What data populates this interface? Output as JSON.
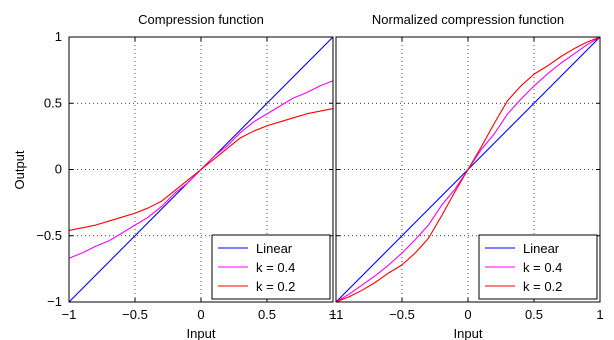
{
  "chart_data": [
    {
      "type": "line",
      "title": "Compression function",
      "xlabel": "Input",
      "ylabel": "Output",
      "xlim": [
        -1,
        1
      ],
      "ylim": [
        -1,
        1
      ],
      "xticks": [
        "−1",
        "−0.5",
        "0",
        "0.5",
        "1"
      ],
      "yticks": [
        "−1",
        "−0.5",
        "0",
        "0.5",
        "1"
      ],
      "grid": true,
      "legend_position": "bottom-right",
      "x": [
        -1,
        -0.9,
        -0.8,
        -0.7,
        -0.6,
        -0.5,
        -0.4,
        -0.3,
        -0.2,
        -0.1,
        0,
        0.1,
        0.2,
        0.3,
        0.4,
        0.5,
        0.6,
        0.7,
        0.8,
        0.9,
        1
      ],
      "series": [
        {
          "name": "Linear",
          "color": "#0000ff",
          "values": [
            -1,
            -0.9,
            -0.8,
            -0.7,
            -0.6,
            -0.5,
            -0.4,
            -0.3,
            -0.2,
            -0.1,
            0,
            0.1,
            0.2,
            0.3,
            0.4,
            0.5,
            0.6,
            0.7,
            0.8,
            0.9,
            1
          ]
        },
        {
          "name": "k = 0.4",
          "color": "#ff00ff",
          "values": [
            -0.67,
            -0.63,
            -0.58,
            -0.54,
            -0.48,
            -0.42,
            -0.36,
            -0.28,
            -0.18,
            -0.1,
            0,
            0.1,
            0.18,
            0.28,
            0.36,
            0.42,
            0.48,
            0.54,
            0.58,
            0.63,
            0.67
          ]
        },
        {
          "name": "k = 0.2",
          "color": "#ff0000",
          "values": [
            -0.46,
            -0.44,
            -0.42,
            -0.39,
            -0.36,
            -0.33,
            -0.29,
            -0.24,
            -0.16,
            -0.08,
            0,
            0.08,
            0.16,
            0.24,
            0.29,
            0.33,
            0.36,
            0.39,
            0.42,
            0.44,
            0.46
          ]
        }
      ]
    },
    {
      "type": "line",
      "title": "Normalized compression function",
      "xlabel": "Input",
      "ylabel": "",
      "xlim": [
        -1,
        1
      ],
      "ylim": [
        -1,
        1
      ],
      "xticks": [
        "−1",
        "−0.5",
        "0",
        "0.5",
        "1"
      ],
      "yticks": [],
      "grid": true,
      "legend_position": "bottom-right",
      "x": [
        -1,
        -0.9,
        -0.8,
        -0.7,
        -0.6,
        -0.5,
        -0.4,
        -0.3,
        -0.2,
        -0.1,
        0,
        0.1,
        0.2,
        0.3,
        0.4,
        0.5,
        0.6,
        0.7,
        0.8,
        0.9,
        1
      ],
      "series": [
        {
          "name": "Linear",
          "color": "#0000ff",
          "values": [
            -1,
            -0.9,
            -0.8,
            -0.7,
            -0.6,
            -0.5,
            -0.4,
            -0.3,
            -0.2,
            -0.1,
            0,
            0.1,
            0.2,
            0.3,
            0.4,
            0.5,
            0.6,
            0.7,
            0.8,
            0.9,
            1
          ]
        },
        {
          "name": "k = 0.4",
          "color": "#ff00ff",
          "values": [
            -1,
            -0.94,
            -0.87,
            -0.8,
            -0.72,
            -0.63,
            -0.53,
            -0.42,
            -0.27,
            -0.15,
            0,
            0.15,
            0.27,
            0.42,
            0.53,
            0.63,
            0.72,
            0.8,
            0.87,
            0.94,
            1
          ]
        },
        {
          "name": "k = 0.2",
          "color": "#ff0000",
          "values": [
            -1,
            -0.96,
            -0.91,
            -0.85,
            -0.78,
            -0.72,
            -0.63,
            -0.52,
            -0.35,
            -0.17,
            0,
            0.17,
            0.35,
            0.52,
            0.63,
            0.72,
            0.78,
            0.85,
            0.91,
            0.96,
            1
          ]
        }
      ]
    }
  ]
}
